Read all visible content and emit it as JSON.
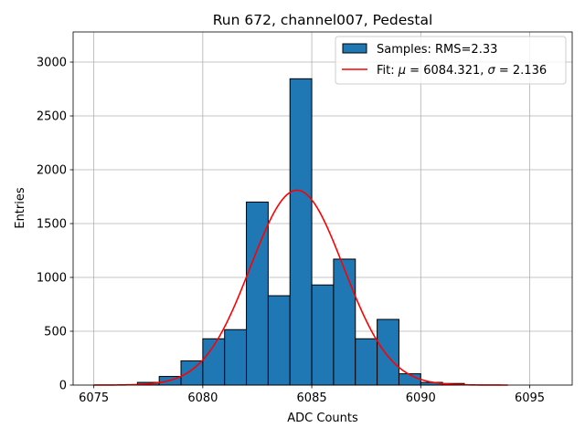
{
  "chart_data": {
    "type": "bar",
    "title": "Run 672, channel007, Pedestal",
    "xlabel": "ADC Counts",
    "ylabel": "Entries",
    "xlim": [
      6074.05,
      6096.95
    ],
    "ylim": [
      0,
      3280
    ],
    "xticks": [
      6075,
      6080,
      6085,
      6090,
      6095
    ],
    "yticks": [
      0,
      500,
      1000,
      1500,
      2000,
      2500,
      3000
    ],
    "grid": true,
    "legend_position": "top-right",
    "histogram": {
      "name": "Samples: RMS=2.33",
      "color": "#1f77b4",
      "edgecolor": "#000000",
      "bin_edges": [
        6077,
        6078,
        6079,
        6080,
        6081,
        6082,
        6083,
        6084,
        6085,
        6086,
        6087,
        6088,
        6089,
        6090,
        6091,
        6092
      ],
      "counts": [
        25,
        80,
        225,
        430,
        515,
        1700,
        830,
        2845,
        930,
        1170,
        430,
        610,
        105,
        25,
        15
      ]
    },
    "fit": {
      "name": "Fit: μ = 6084.321, σ = 2.136",
      "label_prefix": "Fit: ",
      "mu_symbol": "μ",
      "mu_text": " = 6084.321, ",
      "sigma_symbol": "σ",
      "sigma_text": " = 2.136",
      "color": "#ff0000",
      "mu": 6084.321,
      "sigma": 2.136,
      "amplitude": 1810,
      "x_range": [
        6075,
        6094
      ]
    }
  }
}
